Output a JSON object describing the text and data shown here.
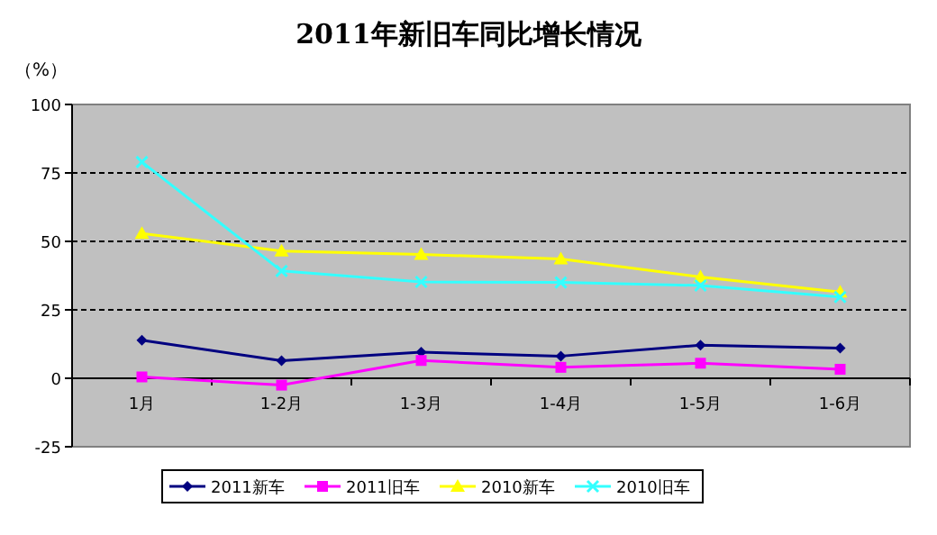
{
  "chart_data": {
    "type": "line",
    "title": "2011年新旧车同比增长情况",
    "ylabel": "（%）",
    "categories": [
      "1月",
      "1-2月",
      "1-3月",
      "1-4月",
      "1-5月",
      "1-6月"
    ],
    "series": [
      {
        "name": "2011新车",
        "color": "#000080",
        "marker": "diamond",
        "values": [
          13.9,
          6.4,
          9.5,
          8.1,
          12.1,
          11
        ]
      },
      {
        "name": "2011旧车",
        "color": "#ff00ff",
        "marker": "square",
        "values": [
          0.5,
          -2.5,
          6.5,
          4,
          5.5,
          3.3
        ]
      },
      {
        "name": "2010新车",
        "color": "#ffff00",
        "marker": "triangle",
        "values": [
          52.9,
          46.5,
          45.2,
          43.6,
          37,
          31.5
        ]
      },
      {
        "name": "2010旧车",
        "color": "#33ffff",
        "marker": "cross",
        "values": [
          79,
          39.2,
          35.2,
          35,
          33.9,
          29.7
        ]
      }
    ],
    "ylim": [
      -25,
      100
    ],
    "yticks": [
      -25,
      0,
      25,
      50,
      75,
      100
    ],
    "grid": "y",
    "legend": "bottom"
  }
}
